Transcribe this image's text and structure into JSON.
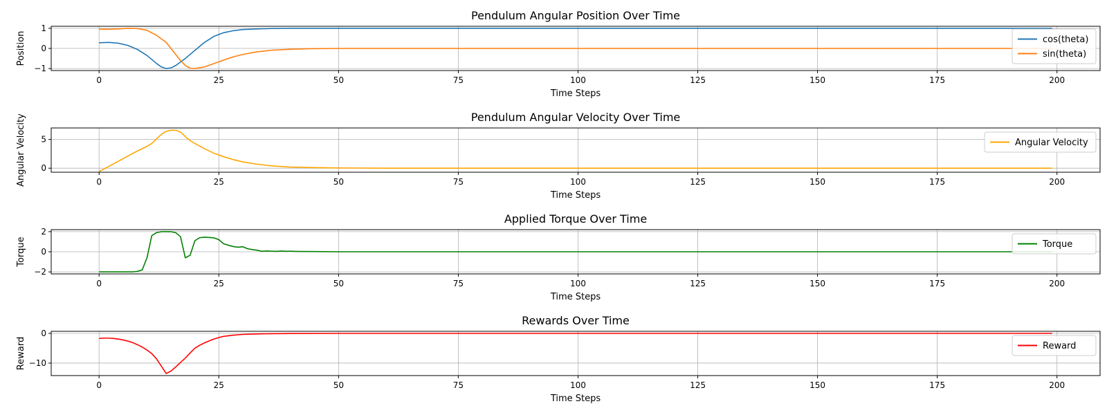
{
  "chart_data": [
    {
      "type": "line",
      "title": "Pendulum Angular Position Over Time",
      "xlabel": "Time Steps",
      "ylabel": "Position",
      "xlim": [
        -10,
        209
      ],
      "ylim": [
        -1.1,
        1.1
      ],
      "xticks": [
        0,
        25,
        50,
        75,
        100,
        125,
        150,
        175,
        200
      ],
      "yticks": [
        -1,
        0,
        1
      ],
      "grid": true,
      "legend_position": "right",
      "series": [
        {
          "name": "cos(theta)",
          "color": "#1f77b4",
          "points": [
            [
              0,
              0.28
            ],
            [
              2,
              0.3
            ],
            [
              4,
              0.26
            ],
            [
              6,
              0.15
            ],
            [
              8,
              -0.05
            ],
            [
              10,
              -0.35
            ],
            [
              12,
              -0.75
            ],
            [
              13,
              -0.92
            ],
            [
              14,
              -1.0
            ],
            [
              15,
              -0.97
            ],
            [
              16,
              -0.85
            ],
            [
              18,
              -0.5
            ],
            [
              20,
              -0.1
            ],
            [
              22,
              0.3
            ],
            [
              24,
              0.6
            ],
            [
              26,
              0.78
            ],
            [
              28,
              0.88
            ],
            [
              30,
              0.94
            ],
            [
              33,
              0.97
            ],
            [
              36,
              0.99
            ],
            [
              40,
              1.0
            ],
            [
              199,
              1.0
            ]
          ]
        },
        {
          "name": "sin(theta)",
          "color": "#ff7f0e",
          "points": [
            [
              0,
              0.95
            ],
            [
              2,
              0.95
            ],
            [
              4,
              0.97
            ],
            [
              6,
              1.0
            ],
            [
              8,
              0.99
            ],
            [
              10,
              0.9
            ],
            [
              12,
              0.65
            ],
            [
              14,
              0.3
            ],
            [
              16,
              -0.3
            ],
            [
              17,
              -0.6
            ],
            [
              18,
              -0.85
            ],
            [
              19,
              -0.98
            ],
            [
              20,
              -1.0
            ],
            [
              22,
              -0.92
            ],
            [
              24,
              -0.75
            ],
            [
              26,
              -0.58
            ],
            [
              28,
              -0.42
            ],
            [
              30,
              -0.3
            ],
            [
              33,
              -0.17
            ],
            [
              36,
              -0.09
            ],
            [
              40,
              -0.04
            ],
            [
              45,
              -0.01
            ],
            [
              50,
              0.0
            ],
            [
              199,
              0.0
            ]
          ]
        }
      ]
    },
    {
      "type": "line",
      "title": "Pendulum Angular Velocity Over Time",
      "xlabel": "Time Steps",
      "ylabel": "Angular Velocity",
      "xlim": [
        -10,
        209
      ],
      "ylim": [
        -0.7,
        7.0
      ],
      "xticks": [
        0,
        25,
        50,
        75,
        100,
        125,
        150,
        175,
        200
      ],
      "yticks": [
        0,
        5
      ],
      "grid": true,
      "legend_position": "right",
      "series": [
        {
          "name": "Angular Velocity",
          "color": "#ffa500",
          "points": [
            [
              0,
              -0.6
            ],
            [
              2,
              0.3
            ],
            [
              4,
              1.2
            ],
            [
              6,
              2.1
            ],
            [
              8,
              3.0
            ],
            [
              10,
              3.8
            ],
            [
              11,
              4.3
            ],
            [
              12,
              5.1
            ],
            [
              13,
              5.9
            ],
            [
              14,
              6.4
            ],
            [
              15,
              6.6
            ],
            [
              16,
              6.6
            ],
            [
              17,
              6.3
            ],
            [
              18,
              5.5
            ],
            [
              19,
              4.8
            ],
            [
              20,
              4.3
            ],
            [
              22,
              3.4
            ],
            [
              24,
              2.6
            ],
            [
              26,
              2.0
            ],
            [
              28,
              1.5
            ],
            [
              30,
              1.1
            ],
            [
              33,
              0.7
            ],
            [
              36,
              0.4
            ],
            [
              40,
              0.2
            ],
            [
              45,
              0.1
            ],
            [
              50,
              0.05
            ],
            [
              60,
              0.0
            ],
            [
              199,
              0.0
            ]
          ]
        }
      ]
    },
    {
      "type": "line",
      "title": "Applied Torque Over Time",
      "xlabel": "Time Steps",
      "ylabel": "Torque",
      "xlim": [
        -10,
        209
      ],
      "ylim": [
        -2.2,
        2.2
      ],
      "xticks": [
        0,
        25,
        50,
        75,
        100,
        125,
        150,
        175,
        200
      ],
      "yticks": [
        -2,
        0,
        2
      ],
      "grid": true,
      "legend_position": "right",
      "series": [
        {
          "name": "Torque",
          "color": "#008000",
          "points": [
            [
              0,
              -2.0
            ],
            [
              1,
              -2.0
            ],
            [
              2,
              -2.0
            ],
            [
              3,
              -2.0
            ],
            [
              4,
              -2.0
            ],
            [
              5,
              -2.0
            ],
            [
              6,
              -2.0
            ],
            [
              7,
              -2.0
            ],
            [
              8,
              -1.95
            ],
            [
              9,
              -1.8
            ],
            [
              10,
              -0.6
            ],
            [
              11,
              1.6
            ],
            [
              12,
              1.9
            ],
            [
              13,
              2.0
            ],
            [
              14,
              2.0
            ],
            [
              15,
              2.0
            ],
            [
              16,
              1.9
            ],
            [
              17,
              1.5
            ],
            [
              18,
              -0.6
            ],
            [
              19,
              -0.35
            ],
            [
              20,
              1.1
            ],
            [
              21,
              1.4
            ],
            [
              22,
              1.45
            ],
            [
              23,
              1.42
            ],
            [
              24,
              1.38
            ],
            [
              25,
              1.2
            ],
            [
              26,
              0.8
            ],
            [
              27,
              0.65
            ],
            [
              28,
              0.52
            ],
            [
              29,
              0.45
            ],
            [
              30,
              0.5
            ],
            [
              31,
              0.3
            ],
            [
              32,
              0.22
            ],
            [
              33,
              0.15
            ],
            [
              34,
              0.05
            ],
            [
              35,
              0.08
            ],
            [
              36,
              0.06
            ],
            [
              37,
              0.04
            ],
            [
              38,
              0.07
            ],
            [
              39,
              0.05
            ],
            [
              40,
              0.06
            ],
            [
              41,
              0.04
            ],
            [
              42,
              0.03
            ],
            [
              45,
              0.02
            ],
            [
              50,
              0.0
            ],
            [
              199,
              0.0
            ]
          ]
        }
      ]
    },
    {
      "type": "line",
      "title": "Rewards Over Time",
      "xlabel": "Time Steps",
      "ylabel": "Reward",
      "xlim": [
        -10,
        209
      ],
      "ylim": [
        -14.2,
        0.7
      ],
      "xticks": [
        0,
        25,
        50,
        75,
        100,
        125,
        150,
        175,
        200
      ],
      "yticks": [
        -10,
        0
      ],
      "grid": true,
      "legend_position": "right",
      "series": [
        {
          "name": "Reward",
          "color": "#ff0000",
          "points": [
            [
              0,
              -1.7
            ],
            [
              1,
              -1.6
            ],
            [
              2,
              -1.6
            ],
            [
              3,
              -1.7
            ],
            [
              4,
              -1.9
            ],
            [
              5,
              -2.2
            ],
            [
              6,
              -2.6
            ],
            [
              7,
              -3.1
            ],
            [
              8,
              -3.8
            ],
            [
              9,
              -4.6
            ],
            [
              10,
              -5.6
            ],
            [
              11,
              -6.8
            ],
            [
              12,
              -8.6
            ],
            [
              13,
              -11.0
            ],
            [
              14,
              -13.5
            ],
            [
              15,
              -12.7
            ],
            [
              16,
              -11.3
            ],
            [
              17,
              -9.8
            ],
            [
              18,
              -8.3
            ],
            [
              19,
              -6.6
            ],
            [
              20,
              -5.0
            ],
            [
              21,
              -4.0
            ],
            [
              22,
              -3.2
            ],
            [
              23,
              -2.5
            ],
            [
              24,
              -1.9
            ],
            [
              25,
              -1.4
            ],
            [
              26,
              -1.0
            ],
            [
              28,
              -0.6
            ],
            [
              30,
              -0.35
            ],
            [
              33,
              -0.18
            ],
            [
              36,
              -0.1
            ],
            [
              40,
              -0.05
            ],
            [
              50,
              0.0
            ],
            [
              199,
              0.0
            ]
          ]
        }
      ]
    }
  ]
}
